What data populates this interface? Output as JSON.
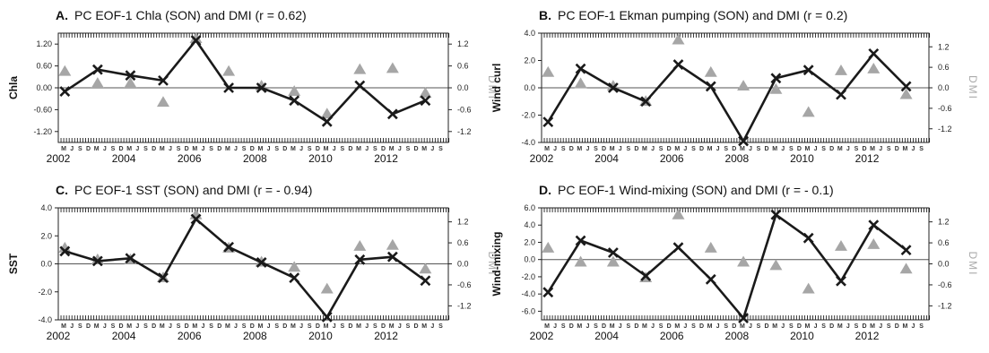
{
  "colors": {
    "pc_line": "#1a1a1a",
    "dmi_marker": "#a6a6a6",
    "axis": "#222222",
    "zero_line": "#555555"
  },
  "month_labels": [
    "D",
    "M",
    "J",
    "S"
  ],
  "chart_data": [
    {
      "type": "line",
      "letter": "A.",
      "title": "PC EOF-1 Chla (SON) and DMI (r = 0.62)",
      "ylabel": "Chla",
      "ylabel_right": "DMI",
      "ylim": [
        -1.5,
        1.5
      ],
      "yticks": [
        "1.20",
        "0.60",
        "0.00",
        "-0.60",
        "-1.20"
      ],
      "ytick_values": [
        1.2,
        0.6,
        0.0,
        -0.6,
        -1.2
      ],
      "ylim_right": [
        -1.5,
        1.5
      ],
      "yticks_right": [
        "1.2",
        "0.6",
        "0.0",
        "-0.6",
        "-1.2"
      ],
      "ytick_right_values": [
        1.2,
        0.6,
        0.0,
        -0.6,
        -1.2
      ],
      "year_labels": [
        "2002",
        "2004",
        "2006",
        "2008",
        "2010",
        "2012"
      ],
      "xlim": [
        2002,
        2013.9
      ],
      "x": [
        2002.2,
        2003.2,
        2004.2,
        2005.2,
        2006.2,
        2007.2,
        2008.2,
        2009.2,
        2010.2,
        2011.2,
        2012.2,
        2013.2
      ],
      "series": [
        {
          "kind": "pc",
          "values": [
            -0.1,
            0.5,
            0.34,
            0.2,
            1.3,
            0.0,
            0.0,
            -0.35,
            -0.93,
            0.06,
            -0.72,
            -0.35
          ]
        },
        {
          "kind": "dmi",
          "x": [
            2002.2,
            2003.2,
            2004.2,
            2005.2,
            2006.2,
            2007.2,
            2008.2,
            2009.2,
            2010.2,
            2011.2,
            2012.2,
            2013.2
          ],
          "values": [
            0.45,
            0.12,
            0.12,
            -0.4,
            1.35,
            0.45,
            0.05,
            -0.1,
            -0.72,
            0.5,
            0.53,
            -0.15
          ]
        }
      ]
    },
    {
      "type": "line",
      "letter": "B.",
      "title": "PC EOF-1 Ekman pumping (SON) and DMI (r = 0.2)",
      "ylabel": "Wind curl",
      "ylabel_right": "DMI",
      "ylim": [
        -4.0,
        4.0
      ],
      "yticks": [
        "4.0",
        "2.0",
        "0.0",
        "-2.0",
        "-4.0"
      ],
      "ytick_values": [
        4.0,
        2.0,
        0.0,
        -2.0,
        -4.0
      ],
      "ylim_right": [
        -1.6,
        1.6
      ],
      "yticks_right": [
        "1.2",
        "0.6",
        "0.0",
        "-0.6",
        "-1.2"
      ],
      "ytick_right_values": [
        1.2,
        0.6,
        0.0,
        -0.6,
        -1.2
      ],
      "year_labels": [
        "2002",
        "2004",
        "2006",
        "2008",
        "2010",
        "2012"
      ],
      "xlim": [
        2002,
        2013.9
      ],
      "x": [
        2002.2,
        2003.2,
        2004.2,
        2005.2,
        2006.2,
        2007.2,
        2008.2,
        2009.2,
        2010.2,
        2011.2,
        2012.2,
        2013.2
      ],
      "series": [
        {
          "kind": "pc",
          "values": [
            -2.5,
            1.4,
            0.0,
            -1.0,
            1.7,
            0.1,
            -3.9,
            0.7,
            1.3,
            -0.5,
            2.5,
            0.1
          ]
        },
        {
          "kind": "dmi",
          "x": [
            2002.2,
            2003.2,
            2004.2,
            2005.2,
            2006.2,
            2007.2,
            2008.2,
            2009.2,
            2010.2,
            2011.2,
            2012.2,
            2013.2
          ],
          "values": [
            0.45,
            0.12,
            0.05,
            -0.4,
            1.4,
            0.45,
            0.05,
            -0.05,
            -0.72,
            0.5,
            0.55,
            -0.2
          ]
        }
      ]
    },
    {
      "type": "line",
      "letter": "C.",
      "title": "PC EOF-1 SST (SON) and DMI (r = - 0.94)",
      "ylabel": "SST",
      "ylabel_right": "DMI",
      "ylim": [
        -4.0,
        4.0
      ],
      "yticks": [
        "4.0",
        "2.0",
        "0.0",
        "-2.0",
        "-4.0"
      ],
      "ytick_values": [
        4.0,
        2.0,
        0.0,
        -2.0,
        -4.0
      ],
      "ylim_right": [
        -1.6,
        1.6
      ],
      "yticks_right": [
        "1.2",
        "0.6",
        "0.0",
        "-0.6",
        "-1.2"
      ],
      "ytick_right_values": [
        1.2,
        0.6,
        0.0,
        -0.6,
        -1.2
      ],
      "year_labels": [
        "2002",
        "2004",
        "2006",
        "2008",
        "2010",
        "2012"
      ],
      "xlim": [
        2002,
        2013.9
      ],
      "x": [
        2002.2,
        2003.2,
        2004.2,
        2005.2,
        2006.2,
        2007.2,
        2008.2,
        2009.2,
        2010.2,
        2011.2,
        2012.2,
        2013.2
      ],
      "series": [
        {
          "kind": "pc",
          "values": [
            0.9,
            0.2,
            0.4,
            -1.0,
            3.2,
            1.2,
            0.1,
            -1.0,
            -3.8,
            0.3,
            0.5,
            -1.2
          ]
        },
        {
          "kind": "dmi",
          "x": [
            2002.2,
            2003.2,
            2004.2,
            2005.2,
            2006.2,
            2007.2,
            2008.2,
            2009.2,
            2010.2,
            2011.2,
            2012.2,
            2013.2
          ],
          "values": [
            0.45,
            0.12,
            0.12,
            -0.4,
            1.4,
            0.45,
            0.05,
            -0.1,
            -0.72,
            0.5,
            0.53,
            -0.15
          ]
        }
      ]
    },
    {
      "type": "line",
      "letter": "D.",
      "title": "PC EOF-1 Wind-mixing (SON) and DMI (r = - 0.1)",
      "ylabel": "Wind-mixing",
      "ylabel_right": "DMI",
      "ylim": [
        -7.0,
        6.0
      ],
      "yticks": [
        "6.0",
        "4.0",
        "2.0",
        "0.0",
        "-2.0",
        "-4.0",
        "-6.0"
      ],
      "ytick_values": [
        6.0,
        4.0,
        2.0,
        0.0,
        -2.0,
        -4.0,
        -6.0
      ],
      "ylim_right": [
        -1.6,
        1.6
      ],
      "yticks_right": [
        "1.2",
        "0.6",
        "0.0",
        "-0.6",
        "-1.2"
      ],
      "ytick_right_values": [
        1.2,
        0.6,
        0.0,
        -0.6,
        -1.2
      ],
      "year_labels": [
        "2002",
        "2004",
        "2006",
        "2008",
        "2010",
        "2012"
      ],
      "xlim": [
        2002,
        2013.9
      ],
      "x": [
        2002.2,
        2003.2,
        2004.2,
        2005.2,
        2006.2,
        2007.2,
        2008.2,
        2009.2,
        2010.2,
        2011.2,
        2012.2,
        2013.2
      ],
      "series": [
        {
          "kind": "pc",
          "values": [
            -3.8,
            2.2,
            0.8,
            -1.9,
            1.4,
            -2.3,
            -6.8,
            5.2,
            2.5,
            -2.5,
            4.0,
            1.1
          ]
        },
        {
          "kind": "dmi",
          "x": [
            2002.2,
            2003.2,
            2004.2,
            2005.2,
            2006.2,
            2007.2,
            2008.2,
            2009.2,
            2010.2,
            2011.2,
            2012.2,
            2013.2
          ],
          "values": [
            0.45,
            0.05,
            0.05,
            -0.4,
            1.4,
            0.45,
            0.05,
            -0.05,
            -0.72,
            0.5,
            0.55,
            -0.15
          ]
        }
      ]
    }
  ]
}
